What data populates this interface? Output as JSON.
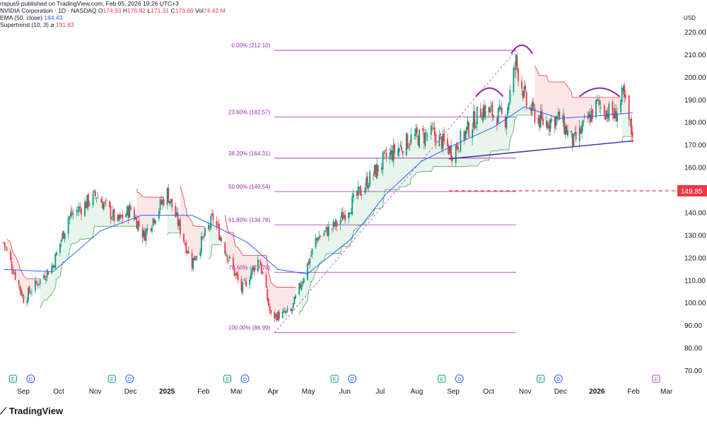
{
  "header": {
    "published": "rispus9 published on TradingView.com, Feb 05, 2026 19:26 UTC+3",
    "symbol_line": "NVIDIA Corporation · 1D · NASDAQ",
    "ohlc": {
      "O_label": "O",
      "O": "174.93",
      "H_label": "H",
      "H": "176.82",
      "L_label": "L",
      "L": "171.31",
      "C_label": "C",
      "C": "173.66",
      "Vol_label": "Vol",
      "Vol": "74.42 M"
    },
    "ema_label": "EMA (50, close)",
    "ema_value": "184.43",
    "supertrend_label": "Supertrend (10, 3)",
    "supertrend_symbol": "⌀",
    "supertrend_value": "191.83"
  },
  "footer": {
    "brand": "TradingView"
  },
  "chart_data": {
    "type": "candlestick",
    "currency": "USD",
    "y_ticks": [
      70,
      80,
      90,
      100,
      110,
      120,
      130,
      140,
      150,
      160,
      170,
      180,
      190,
      200,
      210,
      220
    ],
    "ylim": [
      70,
      225
    ],
    "x_ticks": [
      "Sep",
      "Oct",
      "Nov",
      "Dec",
      "2025",
      "Feb",
      "Mar",
      "Apr",
      "May",
      "Jun",
      "Jul",
      "Aug",
      "Sep",
      "Oct",
      "Nov",
      "Dec",
      "2026",
      "Feb",
      "Mar"
    ],
    "price_label": "149.85",
    "fib_levels": [
      {
        "label": "0.00% (212.10)",
        "value": 212.1
      },
      {
        "label": "23.60% (182.57)",
        "value": 182.57
      },
      {
        "label": "38.20% (164.31)",
        "value": 164.31
      },
      {
        "label": "50.00% (149.54)",
        "value": 149.54
      },
      {
        "label": "61.80% (134.78)",
        "value": 134.78
      },
      {
        "label": "78.60% (113.76)",
        "value": 113.76
      },
      {
        "label": "100.00% (86.99)",
        "value": 86.99
      }
    ],
    "events": [
      {
        "label": "E",
        "x": "Aug 28 2024"
      },
      {
        "label": "D",
        "x": "Sep 12 2024"
      },
      {
        "label": "E",
        "x": "Nov 20 2024"
      },
      {
        "label": "D",
        "x": "Dec 5 2024"
      },
      {
        "label": "E",
        "x": "Feb 26 2025"
      },
      {
        "label": "D",
        "x": "Mar 13 2025"
      },
      {
        "label": "E",
        "x": "May 28 2025"
      },
      {
        "label": "D",
        "x": "Jun 12 2025"
      },
      {
        "label": "E",
        "x": "Aug 27 2025"
      },
      {
        "label": "D",
        "x": "Sep 11 2025"
      },
      {
        "label": "E",
        "x": "Nov 19 2025"
      },
      {
        "label": "D",
        "x": "Dec 4 2025"
      },
      {
        "label": "E",
        "x": "Feb 25 2026"
      }
    ],
    "colors": {
      "up": "#089981",
      "down": "#f23645",
      "ema": "#2962ff",
      "st_up_fill": "#e7f5ec",
      "st_down_fill": "#fde6e6",
      "st_up_line": "#4caf50",
      "st_down_line": "#f23645",
      "fib": "#9c27b0",
      "trendline": "#4a3aa7",
      "hs_arc": "#8e24aa",
      "dashed_level": "#f23645",
      "grid": "#f0f3fa",
      "axis_text": "#131722",
      "event_e": "#089981",
      "event_d": "#2962ff",
      "event_e_future": "#ab47bc"
    },
    "daily": [
      {
        "d": "Aug 20 2024",
        "c": 127
      },
      {
        "d": "Sep 6 2024",
        "c": 102
      },
      {
        "d": "Oct 1 2024",
        "c": 117
      },
      {
        "d": "Oct 14 2024",
        "c": 138
      },
      {
        "d": "Nov 7 2024",
        "c": 148
      },
      {
        "d": "Nov 25 2024",
        "c": 136
      },
      {
        "d": "Dec 6 2024",
        "c": 142
      },
      {
        "d": "Dec 17 2024",
        "c": 130
      },
      {
        "d": "Jan 6 2025",
        "c": 149
      },
      {
        "d": "Jan 27 2025",
        "c": 118
      },
      {
        "d": "Feb 14 2025",
        "c": 138
      },
      {
        "d": "Feb 27 2025",
        "c": 120
      },
      {
        "d": "Mar 10 2025",
        "c": 106
      },
      {
        "d": "Mar 25 2025",
        "c": 120
      },
      {
        "d": "Apr 4 2025",
        "c": 94
      },
      {
        "d": "Apr 21 2025",
        "c": 96
      },
      {
        "d": "May 13 2025",
        "c": 129
      },
      {
        "d": "May 30 2025",
        "c": 135
      },
      {
        "d": "Jun 25 2025",
        "c": 154
      },
      {
        "d": "Jul 10 2025",
        "c": 164
      },
      {
        "d": "Aug 1 2025",
        "c": 173
      },
      {
        "d": "Aug 20 2025",
        "c": 175
      },
      {
        "d": "Sep 5 2025",
        "c": 167
      },
      {
        "d": "Sep 30 2025",
        "c": 186
      },
      {
        "d": "Oct 20 2025",
        "c": 182
      },
      {
        "d": "Oct 29 2025",
        "c": 207
      },
      {
        "d": "Nov 7 2025",
        "c": 188
      },
      {
        "d": "Nov 20 2025",
        "c": 180
      },
      {
        "d": "Dec 5 2025",
        "c": 182
      },
      {
        "d": "Dec 17 2025",
        "c": 171
      },
      {
        "d": "Jan 6 2026",
        "c": 188
      },
      {
        "d": "Jan 21 2026",
        "c": 183
      },
      {
        "d": "Jan 28 2026",
        "c": 192
      },
      {
        "d": "Feb 5 2026",
        "c": 173.66
      }
    ],
    "ema_path": [
      {
        "d": "Aug 20 2024",
        "v": 115
      },
      {
        "d": "Oct 1 2024",
        "v": 114
      },
      {
        "d": "Nov 10 2024",
        "v": 132
      },
      {
        "d": "Dec 15 2024",
        "v": 139
      },
      {
        "d": "Jan 27 2025",
        "v": 139
      },
      {
        "d": "Feb 20 2025",
        "v": 133
      },
      {
        "d": "Mar 15 2025",
        "v": 127
      },
      {
        "d": "Apr 10 2025",
        "v": 115
      },
      {
        "d": "May 5 2025",
        "v": 113
      },
      {
        "d": "Jun 10 2025",
        "v": 128
      },
      {
        "d": "Jul 10 2025",
        "v": 148
      },
      {
        "d": "Aug 10 2025",
        "v": 163
      },
      {
        "d": "Sep 10 2025",
        "v": 171
      },
      {
        "d": "Oct 10 2025",
        "v": 178
      },
      {
        "d": "Nov 5 2025",
        "v": 187
      },
      {
        "d": "Dec 5 2025",
        "v": 182
      },
      {
        "d": "Jan 5 2026",
        "v": 183
      },
      {
        "d": "Feb 5 2026",
        "v": 184.43
      }
    ],
    "trendline": [
      {
        "d": "Sep 2 2025",
        "v": 164
      },
      {
        "d": "Feb 6 2026",
        "v": 172
      }
    ],
    "fib_anchor": [
      {
        "d": "Apr 7 2025",
        "v": 86.99
      },
      {
        "d": "Oct 29 2025",
        "v": 212.1
      }
    ],
    "dashed_level": 149.85,
    "arcs": [
      {
        "from": "Sep 25 2025",
        "to": "Oct 18 2025",
        "peak": 196
      },
      {
        "from": "Oct 25 2025",
        "to": "Nov 12 2025",
        "peak": 215
      },
      {
        "from": "Dec 22 2025",
        "to": "Jan 25 2026",
        "peak": 196
      }
    ]
  }
}
